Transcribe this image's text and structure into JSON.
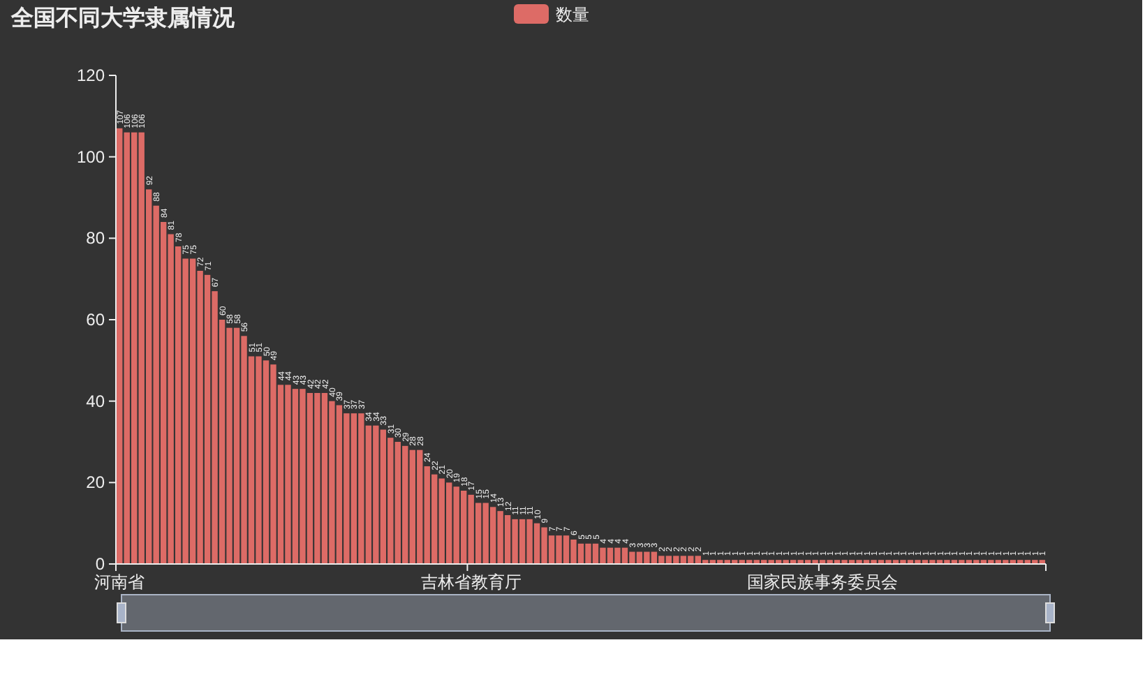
{
  "chart_data": {
    "type": "bar",
    "title": "全国不同大学隶属情况",
    "legend": "top",
    "data_labels": true,
    "ylim": [
      0,
      120
    ],
    "yticks": [
      0,
      20,
      40,
      60,
      80,
      100,
      120
    ],
    "categories": [
      "河南省",
      null,
      null,
      null,
      null,
      null,
      null,
      null,
      null,
      null,
      null,
      null,
      null,
      null,
      null,
      null,
      null,
      null,
      null,
      null,
      null,
      null,
      null,
      null,
      null,
      null,
      null,
      null,
      null,
      null,
      null,
      null,
      null,
      null,
      null,
      null,
      null,
      null,
      null,
      null,
      null,
      null,
      null,
      null,
      null,
      null,
      null,
      null,
      "吉林省教育厅",
      null,
      null,
      null,
      null,
      null,
      null,
      null,
      null,
      null,
      null,
      null,
      null,
      null,
      null,
      null,
      null,
      null,
      null,
      null,
      null,
      null,
      null,
      null,
      null,
      null,
      null,
      null,
      null,
      null,
      null,
      null,
      null,
      null,
      null,
      null,
      null,
      null,
      null,
      null,
      null,
      null,
      null,
      null,
      null,
      null,
      null,
      null,
      "国家民族事务委员会",
      null,
      null,
      null,
      null,
      null,
      null,
      null,
      null,
      null,
      null,
      null,
      null,
      null,
      null,
      null,
      null,
      null,
      null,
      null,
      null,
      null,
      null,
      null,
      null,
      null,
      null,
      null,
      null,
      null,
      null
    ],
    "series": [
      {
        "name": "数量",
        "color": "#dd6b66",
        "values": [
          107,
          106,
          106,
          106,
          92,
          88,
          84,
          81,
          78,
          75,
          75,
          72,
          71,
          67,
          60,
          58,
          58,
          56,
          51,
          51,
          50,
          49,
          44,
          44,
          43,
          43,
          42,
          42,
          42,
          40,
          39,
          37,
          37,
          37,
          34,
          34,
          33,
          31,
          30,
          29,
          28,
          28,
          24,
          22,
          21,
          20,
          19,
          18,
          17,
          15,
          15,
          14,
          13,
          12,
          11,
          11,
          11,
          10,
          9,
          7,
          7,
          7,
          6,
          5,
          5,
          5,
          4,
          4,
          4,
          4,
          3,
          3,
          3,
          3,
          2,
          2,
          2,
          2,
          2,
          2,
          1,
          1,
          1,
          1,
          1,
          1,
          1,
          1,
          1,
          1,
          1,
          1,
          1,
          1,
          1,
          1,
          1,
          1,
          1,
          1,
          1,
          1,
          1,
          1,
          1,
          1,
          1,
          1,
          1,
          1,
          1,
          1,
          1,
          1,
          1,
          1,
          1,
          1,
          1,
          1,
          1,
          1,
          1,
          1,
          1,
          1,
          1
        ]
      }
    ]
  }
}
